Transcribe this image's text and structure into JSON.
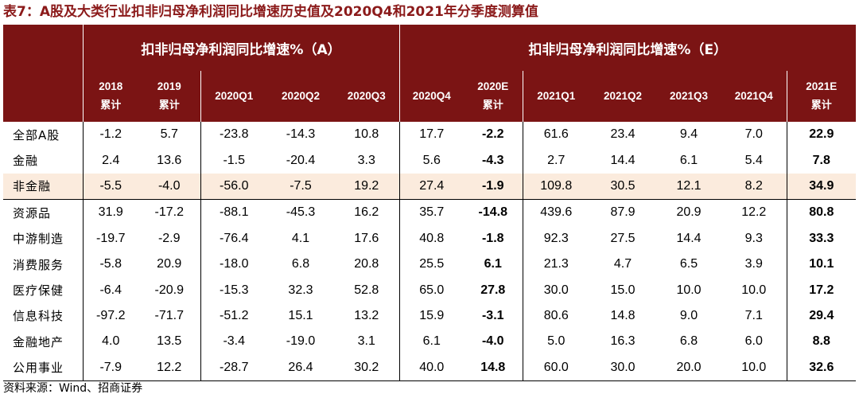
{
  "title": "表7：A股及大类行业扣非归母净利润同比增速历史值及2020Q4和2021年分季度测算值",
  "groups": {
    "actual": "扣非归母净利润同比增速%（A）",
    "estimate": "扣非归母净利润同比增速%（E）"
  },
  "columns": [
    {
      "label": "2018",
      "sub": "累计"
    },
    {
      "label": "2019",
      "sub": "累计"
    },
    {
      "label": "2020Q1",
      "sub": ""
    },
    {
      "label": "2020Q2",
      "sub": ""
    },
    {
      "label": "2020Q3",
      "sub": ""
    },
    {
      "label": "2020Q4",
      "sub": ""
    },
    {
      "label": "2020E",
      "sub": "累计"
    },
    {
      "label": "2021Q1",
      "sub": ""
    },
    {
      "label": "2021Q2",
      "sub": ""
    },
    {
      "label": "2021Q3",
      "sub": ""
    },
    {
      "label": "2021Q4",
      "sub": ""
    },
    {
      "label": "2021E",
      "sub": "累计"
    }
  ],
  "rows": [
    {
      "name": "全部A股",
      "values": [
        "-1.2",
        "5.7",
        "-23.8",
        "-14.3",
        "10.8",
        "17.7",
        "-2.2",
        "61.6",
        "23.4",
        "9.4",
        "7.0",
        "22.9"
      ]
    },
    {
      "name": "金融",
      "values": [
        "2.4",
        "13.6",
        "-1.5",
        "-20.4",
        "3.3",
        "5.6",
        "-4.3",
        "2.7",
        "14.4",
        "6.1",
        "5.4",
        "7.8"
      ]
    },
    {
      "name": "非金融",
      "values": [
        "-5.5",
        "-4.0",
        "-56.0",
        "-7.5",
        "19.2",
        "27.4",
        "-1.9",
        "109.8",
        "30.5",
        "12.1",
        "8.2",
        "34.9"
      ]
    },
    {
      "name": "资源品",
      "values": [
        "31.9",
        "-17.2",
        "-88.1",
        "-45.3",
        "16.2",
        "35.7",
        "-14.8",
        "439.6",
        "87.9",
        "20.9",
        "12.2",
        "80.8"
      ]
    },
    {
      "name": "中游制造",
      "values": [
        "-19.7",
        "-2.9",
        "-76.4",
        "4.1",
        "17.6",
        "40.8",
        "-1.8",
        "92.3",
        "27.5",
        "14.4",
        "9.3",
        "33.3"
      ]
    },
    {
      "name": "消费服务",
      "values": [
        "-5.8",
        "20.9",
        "-18.0",
        "6.8",
        "20.8",
        "25.5",
        "6.1",
        "21.3",
        "4.7",
        "6.5",
        "3.9",
        "10.1"
      ]
    },
    {
      "name": "医疗保健",
      "values": [
        "-6.4",
        "-20.9",
        "-15.3",
        "32.3",
        "52.8",
        "65.0",
        "27.8",
        "30.0",
        "15.0",
        "10.0",
        "10.0",
        "17.2"
      ]
    },
    {
      "name": "信息科技",
      "values": [
        "-97.2",
        "-71.7",
        "-51.2",
        "15.1",
        "13.2",
        "15.9",
        "-3.1",
        "80.6",
        "14.8",
        "9.0",
        "7.1",
        "29.4"
      ]
    },
    {
      "name": "金融地产",
      "values": [
        "4.0",
        "13.5",
        "-3.4",
        "-19.0",
        "3.1",
        "6.1",
        "-4.0",
        "5.0",
        "16.3",
        "6.8",
        "6.0",
        "8.8"
      ]
    },
    {
      "name": "公用事业",
      "values": [
        "-7.9",
        "12.2",
        "-28.7",
        "26.4",
        "30.2",
        "40.0",
        "14.8",
        "60.0",
        "30.0",
        "20.0",
        "10.0",
        "32.6"
      ]
    }
  ],
  "highlight_row": "非金融",
  "colors": {
    "header_bg": "#7B1414",
    "title": "#8B1A1A",
    "highlight": "#FBEBDD"
  },
  "source": "资料来源：Wind、招商证券"
}
